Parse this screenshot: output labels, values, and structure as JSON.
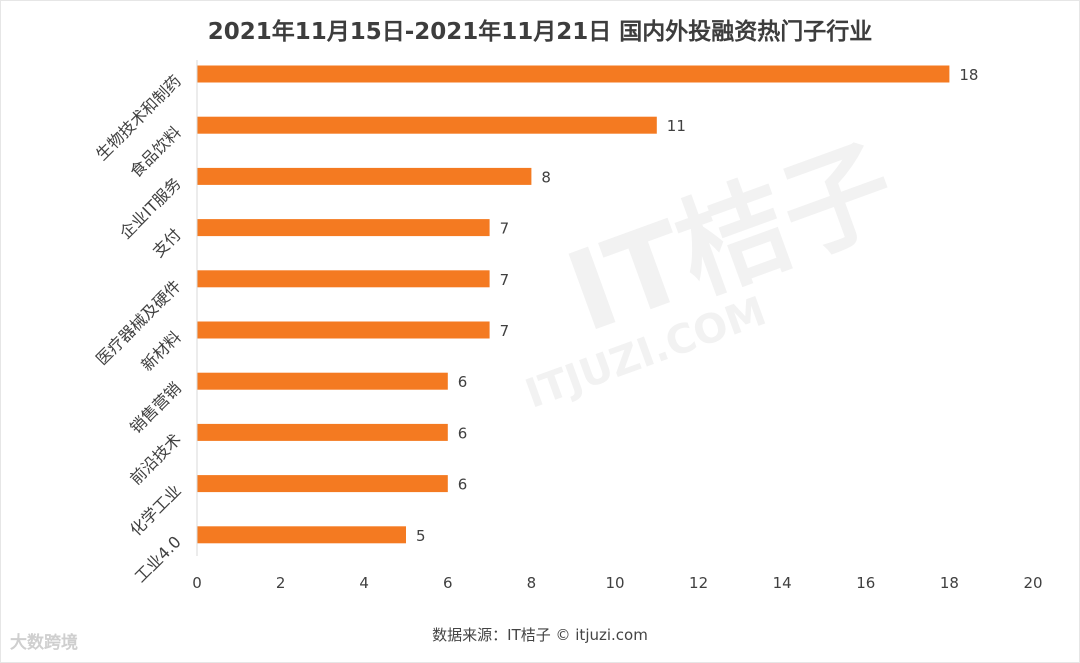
{
  "title": "2021年11月15日-2021年11月21日 国内外投融资热门子行业",
  "source": "数据来源：IT桔子 © itjuzi.com",
  "brand_label": "大数跨境",
  "watermark": {
    "main": "IT桔子",
    "domain": "ITJUZI.COM"
  },
  "colors": {
    "bar": "#f47a21",
    "axis": "#d9d9d9",
    "label": "#404040"
  },
  "chart_data": {
    "type": "bar",
    "orientation": "horizontal",
    "title": "2021年11月15日-2021年11月21日 国内外投融资热门子行业",
    "categories": [
      "生物技术和制药",
      "食品饮料",
      "企业IT服务",
      "支付",
      "医疗器械及硬件",
      "新材料",
      "销售营销",
      "前沿技术",
      "化学工业",
      "工业4.0"
    ],
    "values": [
      18,
      11,
      8,
      7,
      7,
      7,
      6,
      6,
      6,
      5
    ],
    "xlim": [
      0,
      20
    ],
    "xticks": [
      "0",
      "2",
      "4",
      "6",
      "8",
      "10",
      "12",
      "14",
      "16",
      "18",
      "20"
    ],
    "grid": false,
    "xlabel": "",
    "ylabel": ""
  }
}
